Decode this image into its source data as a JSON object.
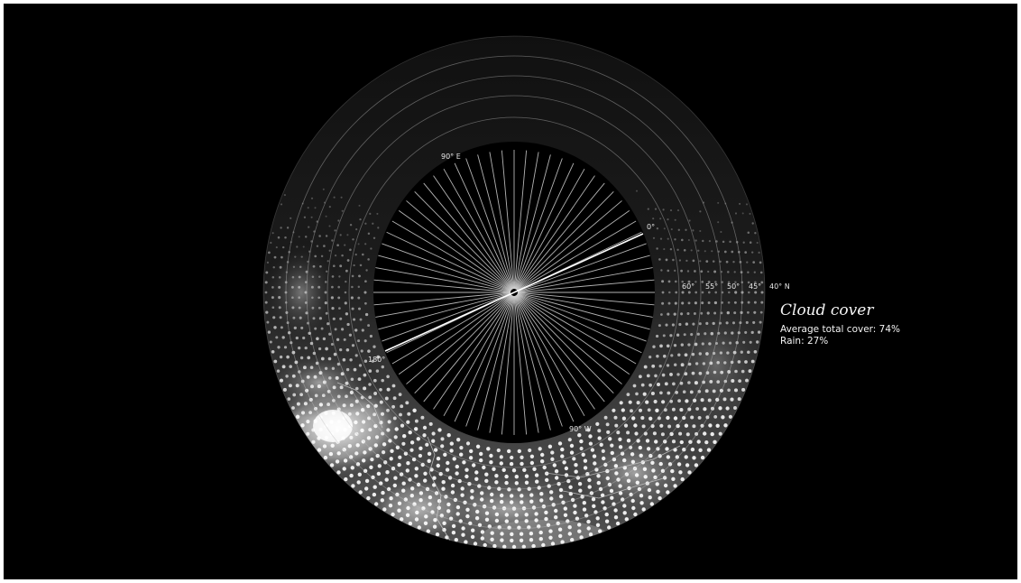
{
  "panel": {
    "title": "Cloud cover",
    "average_label": "Average total cover: 74%",
    "rain_label": "Rain: 27%",
    "average_total_cover_percent": 74,
    "rain_percent": 27
  },
  "latitude_labels": [
    "60°",
    "55°",
    "50°",
    "45°",
    "40° N"
  ],
  "longitude_labels": {
    "east": "90° E",
    "zero": "0°",
    "west": "90° W",
    "dateline": "180°"
  },
  "colors": {
    "background": "#000000",
    "text": "#f4f4f4",
    "gridline": "#bdbdbd"
  }
}
